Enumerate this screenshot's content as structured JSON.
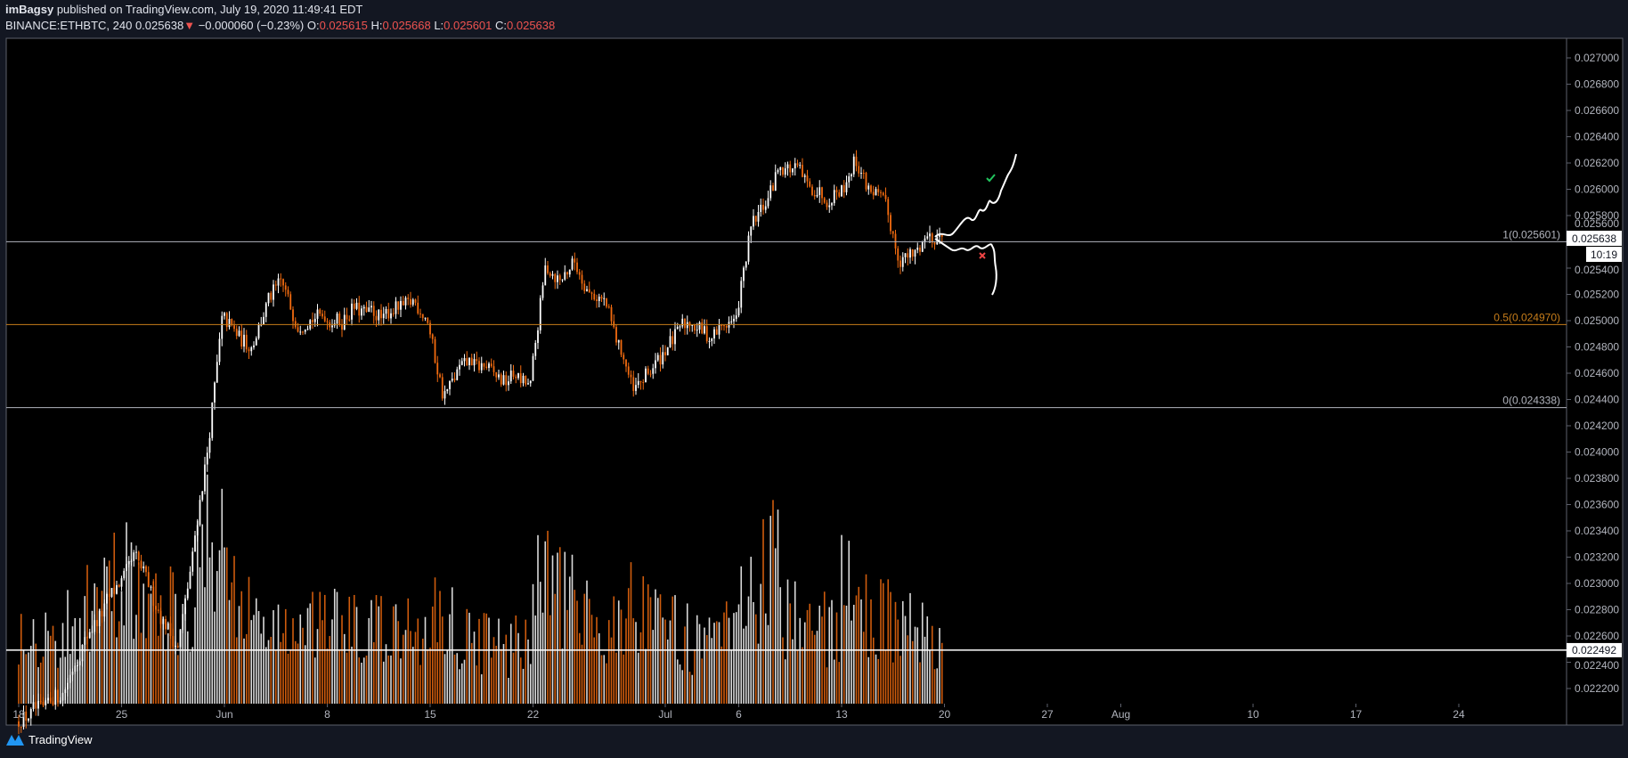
{
  "header": {
    "author": "imBagsy",
    "published_text": "published on TradingView.com, July 19, 2020 11:49:41 EDT",
    "symbol": "BINANCE:ETHBTC, 240",
    "last": "0.025638",
    "change_icon": "triangle-down-icon",
    "change": "−0.000060 (−0.23%)",
    "o_label": "O:",
    "o": "0.025615",
    "h_label": "H:",
    "h": "0.025668",
    "l_label": "L:",
    "l": "0.025601",
    "c_label": "C:",
    "c": "0.025638"
  },
  "footer": {
    "brand": "TradingView",
    "icon": "tradingview-logo-icon"
  },
  "colors": {
    "up": "#ffffff",
    "down": "#f26b0f",
    "fib_0_1": "#b2b5be",
    "fib_05": "#c77d1a",
    "background": "#000000",
    "panel": "#131722",
    "check": "#22c55e",
    "cross": "#ef4444"
  },
  "chart_data": {
    "type": "candlestick",
    "interval": "240",
    "y_axis": {
      "min": 0.0222,
      "max": 0.027,
      "step": 0.0002,
      "position": "right",
      "ticks": [
        "0.027000",
        "0.026800",
        "0.026600",
        "0.026400",
        "0.026200",
        "0.026000",
        "0.025800",
        "0.025600",
        "0.025400",
        "0.025200",
        "0.025000",
        "0.024800",
        "0.024600",
        "0.024400",
        "0.024200",
        "0.024000",
        "0.023800",
        "0.023600",
        "0.023400",
        "0.023200",
        "0.023000",
        "0.022800",
        "0.022600",
        "0.022400",
        "0.022200"
      ]
    },
    "x_axis": {
      "start": "2020-05-18",
      "end": "2020-08-30",
      "ticks": [
        {
          "label": "18",
          "day": 0
        },
        {
          "label": "25",
          "day": 7
        },
        {
          "label": "Jun",
          "day": 14
        },
        {
          "label": "8",
          "day": 21
        },
        {
          "label": "15",
          "day": 28
        },
        {
          "label": "22",
          "day": 35
        },
        {
          "label": "Jul",
          "day": 44
        },
        {
          "label": "6",
          "day": 49
        },
        {
          "label": "13",
          "day": 56
        },
        {
          "label": "20",
          "day": 63
        },
        {
          "label": "27",
          "day": 70
        },
        {
          "label": "Aug",
          "day": 75
        },
        {
          "label": "10",
          "day": 84
        },
        {
          "label": "17",
          "day": 91
        },
        {
          "label": "24",
          "day": 98
        }
      ]
    },
    "daily_dates_start": "2020-05-18",
    "daily_close": [
      0.022,
      0.02205,
      0.02215,
      0.0224,
      0.02265,
      0.0228,
      0.023,
      0.0232,
      0.023,
      0.0227,
      0.0225,
      0.0232,
      0.024,
      0.025,
      0.0249,
      0.0248,
      0.0251,
      0.0253,
      0.025,
      0.025,
      0.02505,
      0.025,
      0.0251,
      0.02505,
      0.025,
      0.0251,
      0.02515,
      0.025,
      0.02445,
      0.0246,
      0.0247,
      0.02465,
      0.02455,
      0.0246,
      0.0245,
      0.0254,
      0.0253,
      0.02545,
      0.0252,
      0.02515,
      0.0248,
      0.02445,
      0.0246,
      0.02475,
      0.0249,
      0.025,
      0.0249,
      0.02495,
      0.025,
      0.0257,
      0.0259,
      0.0262,
      0.02615,
      0.026,
      0.02595,
      0.026,
      0.0262,
      0.026,
      0.0259,
      0.0255,
      0.0255,
      0.02565,
      0.025638
    ],
    "daily_volume_relative": [
      0.5,
      0.45,
      0.4,
      0.45,
      0.55,
      0.6,
      0.7,
      0.85,
      0.6,
      0.55,
      0.6,
      0.65,
      0.9,
      1.0,
      0.8,
      0.55,
      0.5,
      0.45,
      0.45,
      0.4,
      0.45,
      0.5,
      0.45,
      0.4,
      0.45,
      0.4,
      0.45,
      0.4,
      0.55,
      0.5,
      0.4,
      0.4,
      0.35,
      0.35,
      0.4,
      0.75,
      0.7,
      0.6,
      0.5,
      0.45,
      0.5,
      0.6,
      0.5,
      0.45,
      0.45,
      0.4,
      0.35,
      0.35,
      0.4,
      0.6,
      0.75,
      0.8,
      0.6,
      0.5,
      0.45,
      0.5,
      0.7,
      0.55,
      0.5,
      0.55,
      0.45,
      0.4,
      0.35
    ],
    "fib_levels": [
      {
        "label": "1(0.025601)",
        "price": 0.025601
      },
      {
        "label": "0.5(0.024970)",
        "price": 0.02497
      },
      {
        "label": "0(0.024338)",
        "price": 0.024338
      }
    ],
    "horizontal_line": {
      "label": "0.022492",
      "price": 0.022492
    },
    "last_price_label": "0.025638",
    "countdown": "10:19",
    "annotations": [
      {
        "type": "projection-up",
        "marker": "check-icon"
      },
      {
        "type": "projection-down",
        "marker": "cross-icon"
      }
    ]
  }
}
